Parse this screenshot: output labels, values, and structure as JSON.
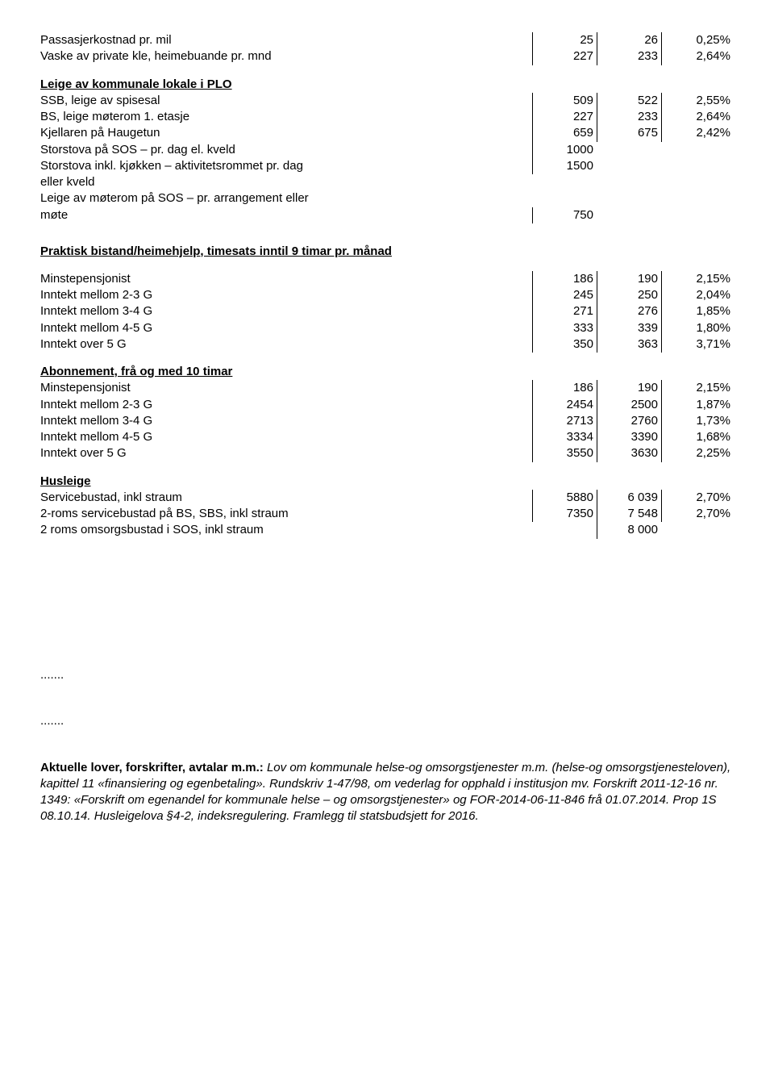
{
  "top": {
    "r1": {
      "label": "Passasjerkostnad pr. mil",
      "c1": "25",
      "c2": "26",
      "c3": "0,25%"
    },
    "r2": {
      "label": "Vaske av private kle, heimebuande pr. mnd",
      "c1": "227",
      "c2": "233",
      "c3": "2,64%"
    }
  },
  "plo": {
    "heading": "Leige av kommunale lokale i PLO",
    "r1": {
      "label": "SSB, leige av spisesal",
      "c1": "509",
      "c2": "522",
      "c3": "2,55%"
    },
    "r2": {
      "label": "BS, leige møterom 1. etasje",
      "c1": "227",
      "c2": "233",
      "c3": "2,64%"
    },
    "r3": {
      "label": "Kjellaren på Haugetun",
      "c1": "659",
      "c2": "675",
      "c3": "2,42%"
    },
    "r4": {
      "label": "Storstova på SOS – pr. dag el. kveld",
      "c1": "1000",
      "c2": "",
      "c3": ""
    },
    "r5a": {
      "label": "Storstova inkl. kjøkken – aktivitetsrommet pr. dag",
      "c1": "1500",
      "c2": "",
      "c3": ""
    },
    "r5b": {
      "label": "eller kveld"
    },
    "r6a": {
      "label": "Leige av møterom på SOS – pr. arrangement eller"
    },
    "r6b": {
      "label": "møte",
      "c1": "750",
      "c2": "",
      "c3": ""
    }
  },
  "praktisk": {
    "heading": "Praktisk bistand/heimehjelp, timesats inntil 9 timar pr. månad",
    "r1": {
      "label": "Minstepensjonist",
      "c1": "186",
      "c2": "190",
      "c3": "2,15%"
    },
    "r2": {
      "label": "Inntekt mellom 2-3 G",
      "c1": "245",
      "c2": "250",
      "c3": "2,04%"
    },
    "r3": {
      "label": "Inntekt mellom 3-4 G",
      "c1": "271",
      "c2": "276",
      "c3": "1,85%"
    },
    "r4": {
      "label": "Inntekt mellom 4-5 G",
      "c1": "333",
      "c2": "339",
      "c3": "1,80%"
    },
    "r5": {
      "label": "Inntekt over 5 G",
      "c1": "350",
      "c2": "363",
      "c3": "3,71%"
    }
  },
  "abonn": {
    "heading": "Abonnement, frå og med 10 timar",
    "r1": {
      "label": "Minstepensjonist",
      "c1": "186",
      "c2": "190",
      "c3": "2,15%"
    },
    "r2": {
      "label": "Inntekt mellom 2-3 G",
      "c1": "2454",
      "c2": "2500",
      "c3": "1,87%"
    },
    "r3": {
      "label": "Inntekt mellom 3-4 G",
      "c1": "2713",
      "c2": "2760",
      "c3": "1,73%"
    },
    "r4": {
      "label": "Inntekt mellom 4-5 G",
      "c1": "3334",
      "c2": "3390",
      "c3": "1,68%"
    },
    "r5": {
      "label": "Inntekt over 5 G",
      "c1": "3550",
      "c2": "3630",
      "c3": "2,25%"
    }
  },
  "husleige": {
    "heading": "Husleige",
    "r1": {
      "label": "Servicebustad, inkl straum",
      "c1": "5880",
      "c2": "6 039",
      "c3": "2,70%"
    },
    "r2": {
      "label": "2-roms servicebustad på BS, SBS, inkl straum",
      "c1": "7350",
      "c2": "7 548",
      "c3": "2,70%"
    },
    "r3": {
      "label": "2 roms omsorgsbustad i SOS, inkl straum",
      "c1": "",
      "c2": "8 000",
      "c3": ""
    }
  },
  "dots": ".......",
  "footer": {
    "bold": "Aktuelle lover, forskrifter, avtalar m.m.:",
    "it1": " Lov om kommunale helse-og omsorgstjenester m.m. (helse-og omsorgstjenesteloven), kapittel 11 «finansiering og egenbetaling». Rundskriv 1-47/98, om vederlag for opphald i institusjon mv.  Forskrift 2011-12-16 nr. 1349: «Forskrift om egenandel for kommunale helse – og omsorgstjenester» og FOR-2014-06-11-846 frå 01.07.2014.  Prop 1S 08.10.14. Husleigelova §4-2, indeksregulering. Framlegg til statsbudsjett for 2016."
  }
}
